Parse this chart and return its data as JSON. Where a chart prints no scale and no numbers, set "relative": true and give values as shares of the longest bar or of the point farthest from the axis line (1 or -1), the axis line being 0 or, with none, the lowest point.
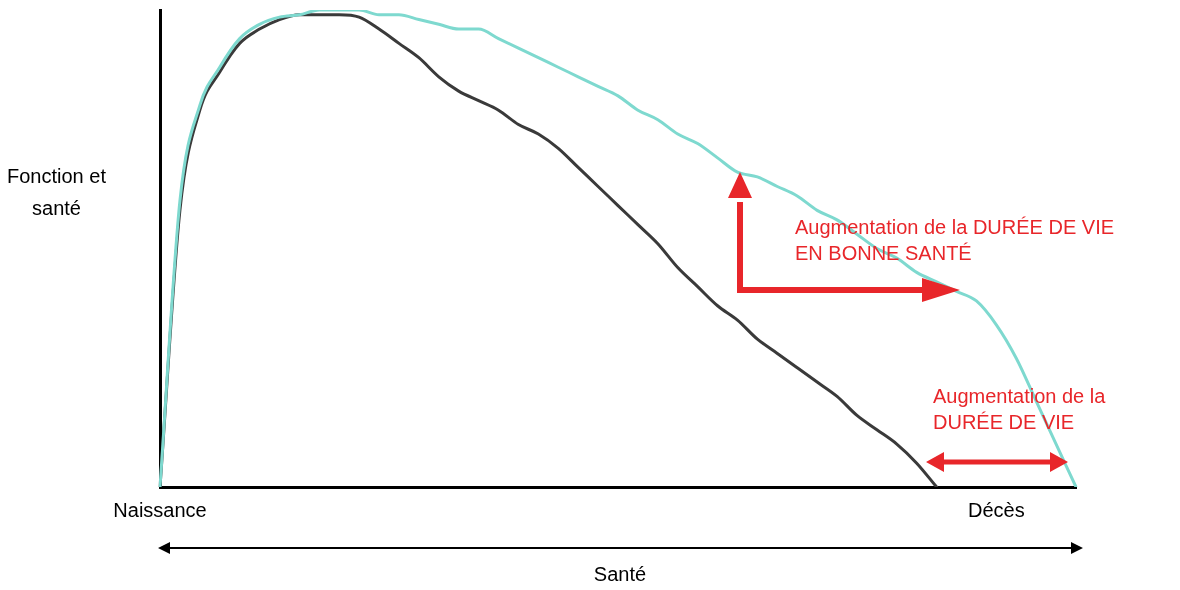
{
  "chart_data": {
    "type": "line",
    "relative": true,
    "xlabel": "Santé",
    "ylabel": "Fonction et santé",
    "categories": [
      "Naissance",
      null,
      null,
      null,
      null,
      null,
      null,
      null,
      null,
      null,
      null,
      null,
      null,
      null,
      null,
      null,
      null,
      null,
      null,
      null,
      null,
      null,
      null,
      null,
      null,
      null,
      null,
      null,
      null,
      null,
      null,
      null,
      null,
      null,
      null,
      null,
      null,
      null,
      null,
      null,
      null,
      null,
      "Décès",
      null,
      null,
      null,
      null
    ],
    "series": [
      {
        "color": "#7ed9cf",
        "values": [
          0,
          0.6,
          0.8,
          0.88,
          0.94,
          0.97,
          0.985,
          0.99,
          1,
          1,
          1,
          0.99,
          0.99,
          0.98,
          0.97,
          0.96,
          0.96,
          0.94,
          0.92,
          0.9,
          0.88,
          0.86,
          0.84,
          0.82,
          0.79,
          0.77,
          0.74,
          0.72,
          0.69,
          0.66,
          0.65,
          0.63,
          0.61,
          0.58,
          0.56,
          0.53,
          0.5,
          0.48,
          0.45,
          0.43,
          0.41,
          0.39,
          0.34,
          0.27,
          0.18,
          0.09,
          0
        ]
      },
      {
        "color": "#3a3a3a",
        "values": [
          0,
          0.58,
          0.79,
          0.87,
          0.93,
          0.96,
          0.98,
          0.99,
          0.99,
          0.99,
          0.985,
          0.96,
          0.93,
          0.9,
          0.86,
          0.83,
          0.81,
          0.79,
          0.76,
          0.74,
          0.71,
          0.67,
          0.63,
          0.59,
          0.55,
          0.51,
          0.46,
          0.42,
          0.38,
          0.35,
          0.31,
          0.28,
          0.25,
          0.22,
          0.19,
          0.15,
          0.12,
          0.09,
          0.05,
          0,
          null,
          null,
          null,
          null,
          null,
          null,
          null
        ]
      }
    ],
    "annotations": [
      "Augmentation de la DURÉE DE VIE EN BONNE SANTÉ",
      "Augmentation de la DURÉE DE VIE"
    ],
    "tick_labels": "x",
    "grid": false,
    "legend": false,
    "marker": "none",
    "line_style": "solid"
  }
}
